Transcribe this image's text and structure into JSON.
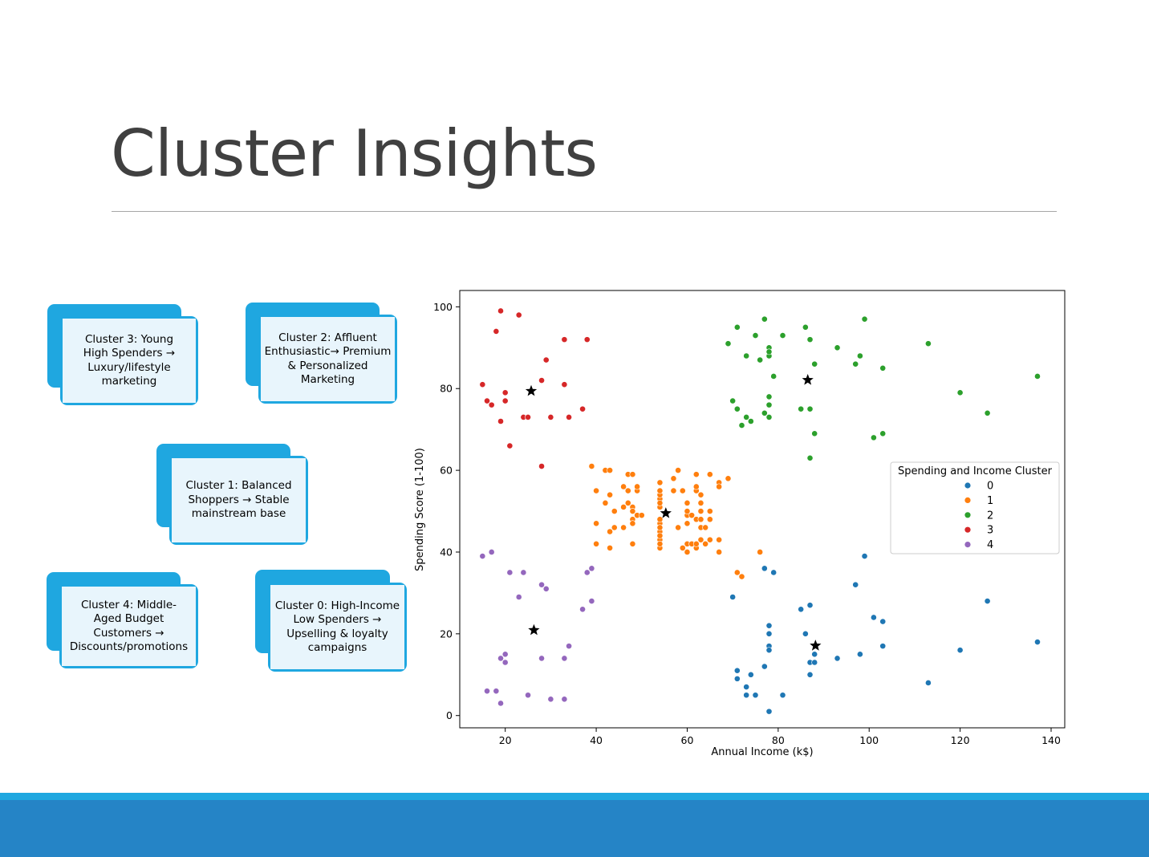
{
  "slide": {
    "title": "Cluster Insights"
  },
  "cards": [
    {
      "text": "Cluster 3: Young High Spenders → Luxury/lifestyle marketing"
    },
    {
      "text": "Cluster 2: Affluent Enthusiastic→ Premium & Personalized Marketing"
    },
    {
      "text": "Cluster 1: Balanced Shoppers → Stable mainstream base"
    },
    {
      "text": "Cluster 4: Middle-Aged Budget Customers → Discounts/promotions"
    },
    {
      "text": "Cluster 0: High-Income Low Spenders → Upselling & loyalty campaigns"
    }
  ],
  "colors": {
    "accent": "#1fa7e0",
    "footer": "#2584c6",
    "cluster_0": "#1f77b4",
    "cluster_1": "#ff7f0e",
    "cluster_2": "#2ca02c",
    "cluster_3": "#d62728",
    "cluster_4": "#9467bd"
  },
  "chart_data": {
    "type": "scatter",
    "xlabel": "Annual Income (k$)",
    "ylabel": "Spending Score (1-100)",
    "xlim": [
      10,
      143
    ],
    "ylim": [
      -3,
      104
    ],
    "xticks": [
      20,
      40,
      60,
      80,
      100,
      120,
      140
    ],
    "yticks": [
      0,
      20,
      40,
      60,
      80,
      100
    ],
    "grid": false,
    "legend": {
      "title": "Spending and Income Cluster",
      "placement": "right",
      "entries": [
        "0",
        "1",
        "2",
        "3",
        "4"
      ]
    },
    "series": [
      {
        "name": "0",
        "color": "#1f77b4",
        "points": [
          [
            70,
            29
          ],
          [
            71,
            11
          ],
          [
            71,
            9
          ],
          [
            73,
            5
          ],
          [
            73,
            7
          ],
          [
            74,
            10
          ],
          [
            75,
            5
          ],
          [
            77,
            36
          ],
          [
            77,
            12
          ],
          [
            78,
            22
          ],
          [
            78,
            20
          ],
          [
            78,
            17
          ],
          [
            78,
            16
          ],
          [
            78,
            1
          ],
          [
            79,
            35
          ],
          [
            81,
            5
          ],
          [
            85,
            26
          ],
          [
            86,
            20
          ],
          [
            87,
            27
          ],
          [
            87,
            13
          ],
          [
            87,
            10
          ],
          [
            88,
            13
          ],
          [
            88,
            15
          ],
          [
            93,
            14
          ],
          [
            97,
            32
          ],
          [
            98,
            15
          ],
          [
            99,
            39
          ],
          [
            101,
            24
          ],
          [
            103,
            23
          ],
          [
            103,
            17
          ],
          [
            113,
            8
          ],
          [
            120,
            16
          ],
          [
            126,
            28
          ],
          [
            137,
            18
          ]
        ]
      },
      {
        "name": "1",
        "color": "#ff7f0e",
        "points": [
          [
            39,
            61
          ],
          [
            40,
            55
          ],
          [
            40,
            47
          ],
          [
            40,
            42
          ],
          [
            42,
            52
          ],
          [
            42,
            60
          ],
          [
            43,
            60
          ],
          [
            43,
            54
          ],
          [
            43,
            45
          ],
          [
            43,
            41
          ],
          [
            44,
            50
          ],
          [
            44,
            46
          ],
          [
            46,
            51
          ],
          [
            46,
            46
          ],
          [
            46,
            56
          ],
          [
            47,
            55
          ],
          [
            47,
            52
          ],
          [
            47,
            59
          ],
          [
            48,
            51
          ],
          [
            48,
            59
          ],
          [
            48,
            50
          ],
          [
            48,
            48
          ],
          [
            48,
            47
          ],
          [
            48,
            42
          ],
          [
            49,
            55
          ],
          [
            49,
            49
          ],
          [
            49,
            56
          ],
          [
            50,
            49
          ],
          [
            54,
            47
          ],
          [
            54,
            53
          ],
          [
            54,
            54
          ],
          [
            54,
            57
          ],
          [
            54,
            45
          ],
          [
            54,
            55
          ],
          [
            54,
            51
          ],
          [
            54,
            46
          ],
          [
            54,
            52
          ],
          [
            54,
            48
          ],
          [
            54,
            43
          ],
          [
            54,
            41
          ],
          [
            54,
            42
          ],
          [
            54,
            44
          ],
          [
            57,
            58
          ],
          [
            57,
            55
          ],
          [
            58,
            60
          ],
          [
            58,
            46
          ],
          [
            59,
            55
          ],
          [
            59,
            41
          ],
          [
            60,
            49
          ],
          [
            60,
            40
          ],
          [
            60,
            42
          ],
          [
            60,
            52
          ],
          [
            60,
            47
          ],
          [
            60,
            50
          ],
          [
            61,
            42
          ],
          [
            61,
            49
          ],
          [
            62,
            41
          ],
          [
            62,
            48
          ],
          [
            62,
            59
          ],
          [
            62,
            55
          ],
          [
            62,
            56
          ],
          [
            62,
            42
          ],
          [
            63,
            50
          ],
          [
            63,
            46
          ],
          [
            63,
            43
          ],
          [
            63,
            48
          ],
          [
            63,
            52
          ],
          [
            63,
            54
          ],
          [
            64,
            42
          ],
          [
            64,
            46
          ],
          [
            65,
            48
          ],
          [
            65,
            50
          ],
          [
            65,
            43
          ],
          [
            65,
            59
          ],
          [
            67,
            43
          ],
          [
            67,
            57
          ],
          [
            67,
            56
          ],
          [
            67,
            40
          ],
          [
            69,
            58
          ],
          [
            71,
            35
          ],
          [
            72,
            34
          ],
          [
            76,
            40
          ]
        ]
      },
      {
        "name": "2",
        "color": "#2ca02c",
        "points": [
          [
            69,
            91
          ],
          [
            70,
            77
          ],
          [
            71,
            95
          ],
          [
            71,
            75
          ],
          [
            71,
            75
          ],
          [
            72,
            71
          ],
          [
            73,
            88
          ],
          [
            73,
            73
          ],
          [
            74,
            72
          ],
          [
            75,
            93
          ],
          [
            76,
            87
          ],
          [
            77,
            97
          ],
          [
            77,
            74
          ],
          [
            78,
            90
          ],
          [
            78,
            88
          ],
          [
            78,
            76
          ],
          [
            78,
            89
          ],
          [
            78,
            78
          ],
          [
            78,
            73
          ],
          [
            79,
            83
          ],
          [
            81,
            93
          ],
          [
            85,
            75
          ],
          [
            86,
            95
          ],
          [
            87,
            63
          ],
          [
            87,
            75
          ],
          [
            87,
            92
          ],
          [
            88,
            86
          ],
          [
            88,
            69
          ],
          [
            93,
            90
          ],
          [
            97,
            86
          ],
          [
            98,
            88
          ],
          [
            99,
            97
          ],
          [
            101,
            68
          ],
          [
            103,
            85
          ],
          [
            103,
            69
          ],
          [
            113,
            91
          ],
          [
            120,
            79
          ],
          [
            126,
            74
          ],
          [
            137,
            83
          ]
        ]
      },
      {
        "name": "3",
        "color": "#d62728",
        "points": [
          [
            15,
            81
          ],
          [
            16,
            77
          ],
          [
            17,
            76
          ],
          [
            18,
            94
          ],
          [
            19,
            72
          ],
          [
            19,
            99
          ],
          [
            20,
            77
          ],
          [
            20,
            79
          ],
          [
            21,
            66
          ],
          [
            23,
            98
          ],
          [
            24,
            73
          ],
          [
            25,
            73
          ],
          [
            28,
            82
          ],
          [
            28,
            61
          ],
          [
            29,
            87
          ],
          [
            30,
            73
          ],
          [
            33,
            92
          ],
          [
            33,
            81
          ],
          [
            34,
            73
          ],
          [
            37,
            75
          ],
          [
            38,
            92
          ]
        ]
      },
      {
        "name": "4",
        "color": "#9467bd",
        "points": [
          [
            15,
            39
          ],
          [
            16,
            6
          ],
          [
            17,
            40
          ],
          [
            18,
            6
          ],
          [
            19,
            3
          ],
          [
            19,
            14
          ],
          [
            20,
            15
          ],
          [
            20,
            13
          ],
          [
            21,
            35
          ],
          [
            23,
            29
          ],
          [
            24,
            35
          ],
          [
            25,
            5
          ],
          [
            28,
            14
          ],
          [
            28,
            32
          ],
          [
            29,
            31
          ],
          [
            30,
            4
          ],
          [
            33,
            4
          ],
          [
            33,
            14
          ],
          [
            34,
            17
          ],
          [
            37,
            26
          ],
          [
            38,
            35
          ],
          [
            39,
            36
          ],
          [
            39,
            28
          ]
        ]
      }
    ],
    "centroids": [
      {
        "cluster": "0",
        "x": 88.2,
        "y": 17.1
      },
      {
        "cluster": "1",
        "x": 55.3,
        "y": 49.5
      },
      {
        "cluster": "2",
        "x": 86.5,
        "y": 82.1
      },
      {
        "cluster": "3",
        "x": 25.7,
        "y": 79.4
      },
      {
        "cluster": "4",
        "x": 26.3,
        "y": 20.9
      }
    ]
  }
}
